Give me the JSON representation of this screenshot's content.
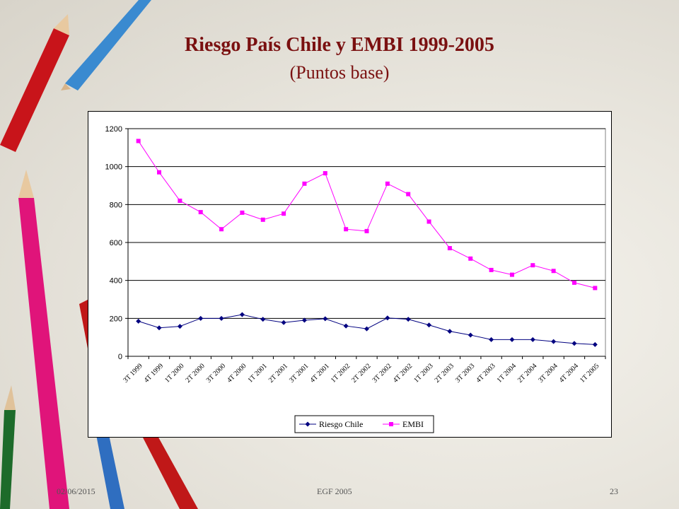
{
  "slide": {
    "title": "Riesgo País Chile y EMBI  1999-2005",
    "subtitle": "(Puntos base)",
    "footer_date": "02/06/2015",
    "footer_center": "EGF 2005",
    "page_number": "23"
  },
  "decor": {
    "pencils": [
      "red-pencil-icon",
      "blue-pencil-icon",
      "pink-pencil-icon",
      "red-pencil-icon",
      "green-pencil-icon",
      "blue-pencil-icon",
      "red-pencil-icon"
    ]
  },
  "chart_data": {
    "type": "line",
    "categories": [
      "3T 1999",
      "4T 1999",
      "1T 2000",
      "2T 2000",
      "3T 2000",
      "4T 2000",
      "1T 2001",
      "2T 2001",
      "3T 2001",
      "4T 2001",
      "1T 2002",
      "2T 2002",
      "3T 2002",
      "4T 2002",
      "1T 2003",
      "2T 2003",
      "3T 2003",
      "4T 2003",
      "1T 2004",
      "2T 2004",
      "3T 2004",
      "4T 2004",
      "1T 2005"
    ],
    "series": [
      {
        "name": "Riesgo Chile",
        "color": "#000080",
        "marker": "diamond",
        "values": [
          185,
          150,
          158,
          200,
          200,
          220,
          195,
          178,
          190,
          198,
          160,
          145,
          202,
          195,
          165,
          132,
          112,
          88,
          88,
          88,
          78,
          68,
          62
        ]
      },
      {
        "name": "EMBI",
        "color": "#ff00ff",
        "marker": "square",
        "values": [
          1135,
          970,
          820,
          760,
          670,
          757,
          720,
          752,
          910,
          965,
          670,
          660,
          910,
          855,
          710,
          570,
          515,
          455,
          430,
          480,
          450,
          388,
          360
        ]
      }
    ],
    "ylim": [
      0,
      1200
    ],
    "yticks": [
      0,
      200,
      400,
      600,
      800,
      1000,
      1200
    ],
    "grid": true,
    "legend": "bottom",
    "title": "",
    "xlabel": "",
    "ylabel": ""
  }
}
